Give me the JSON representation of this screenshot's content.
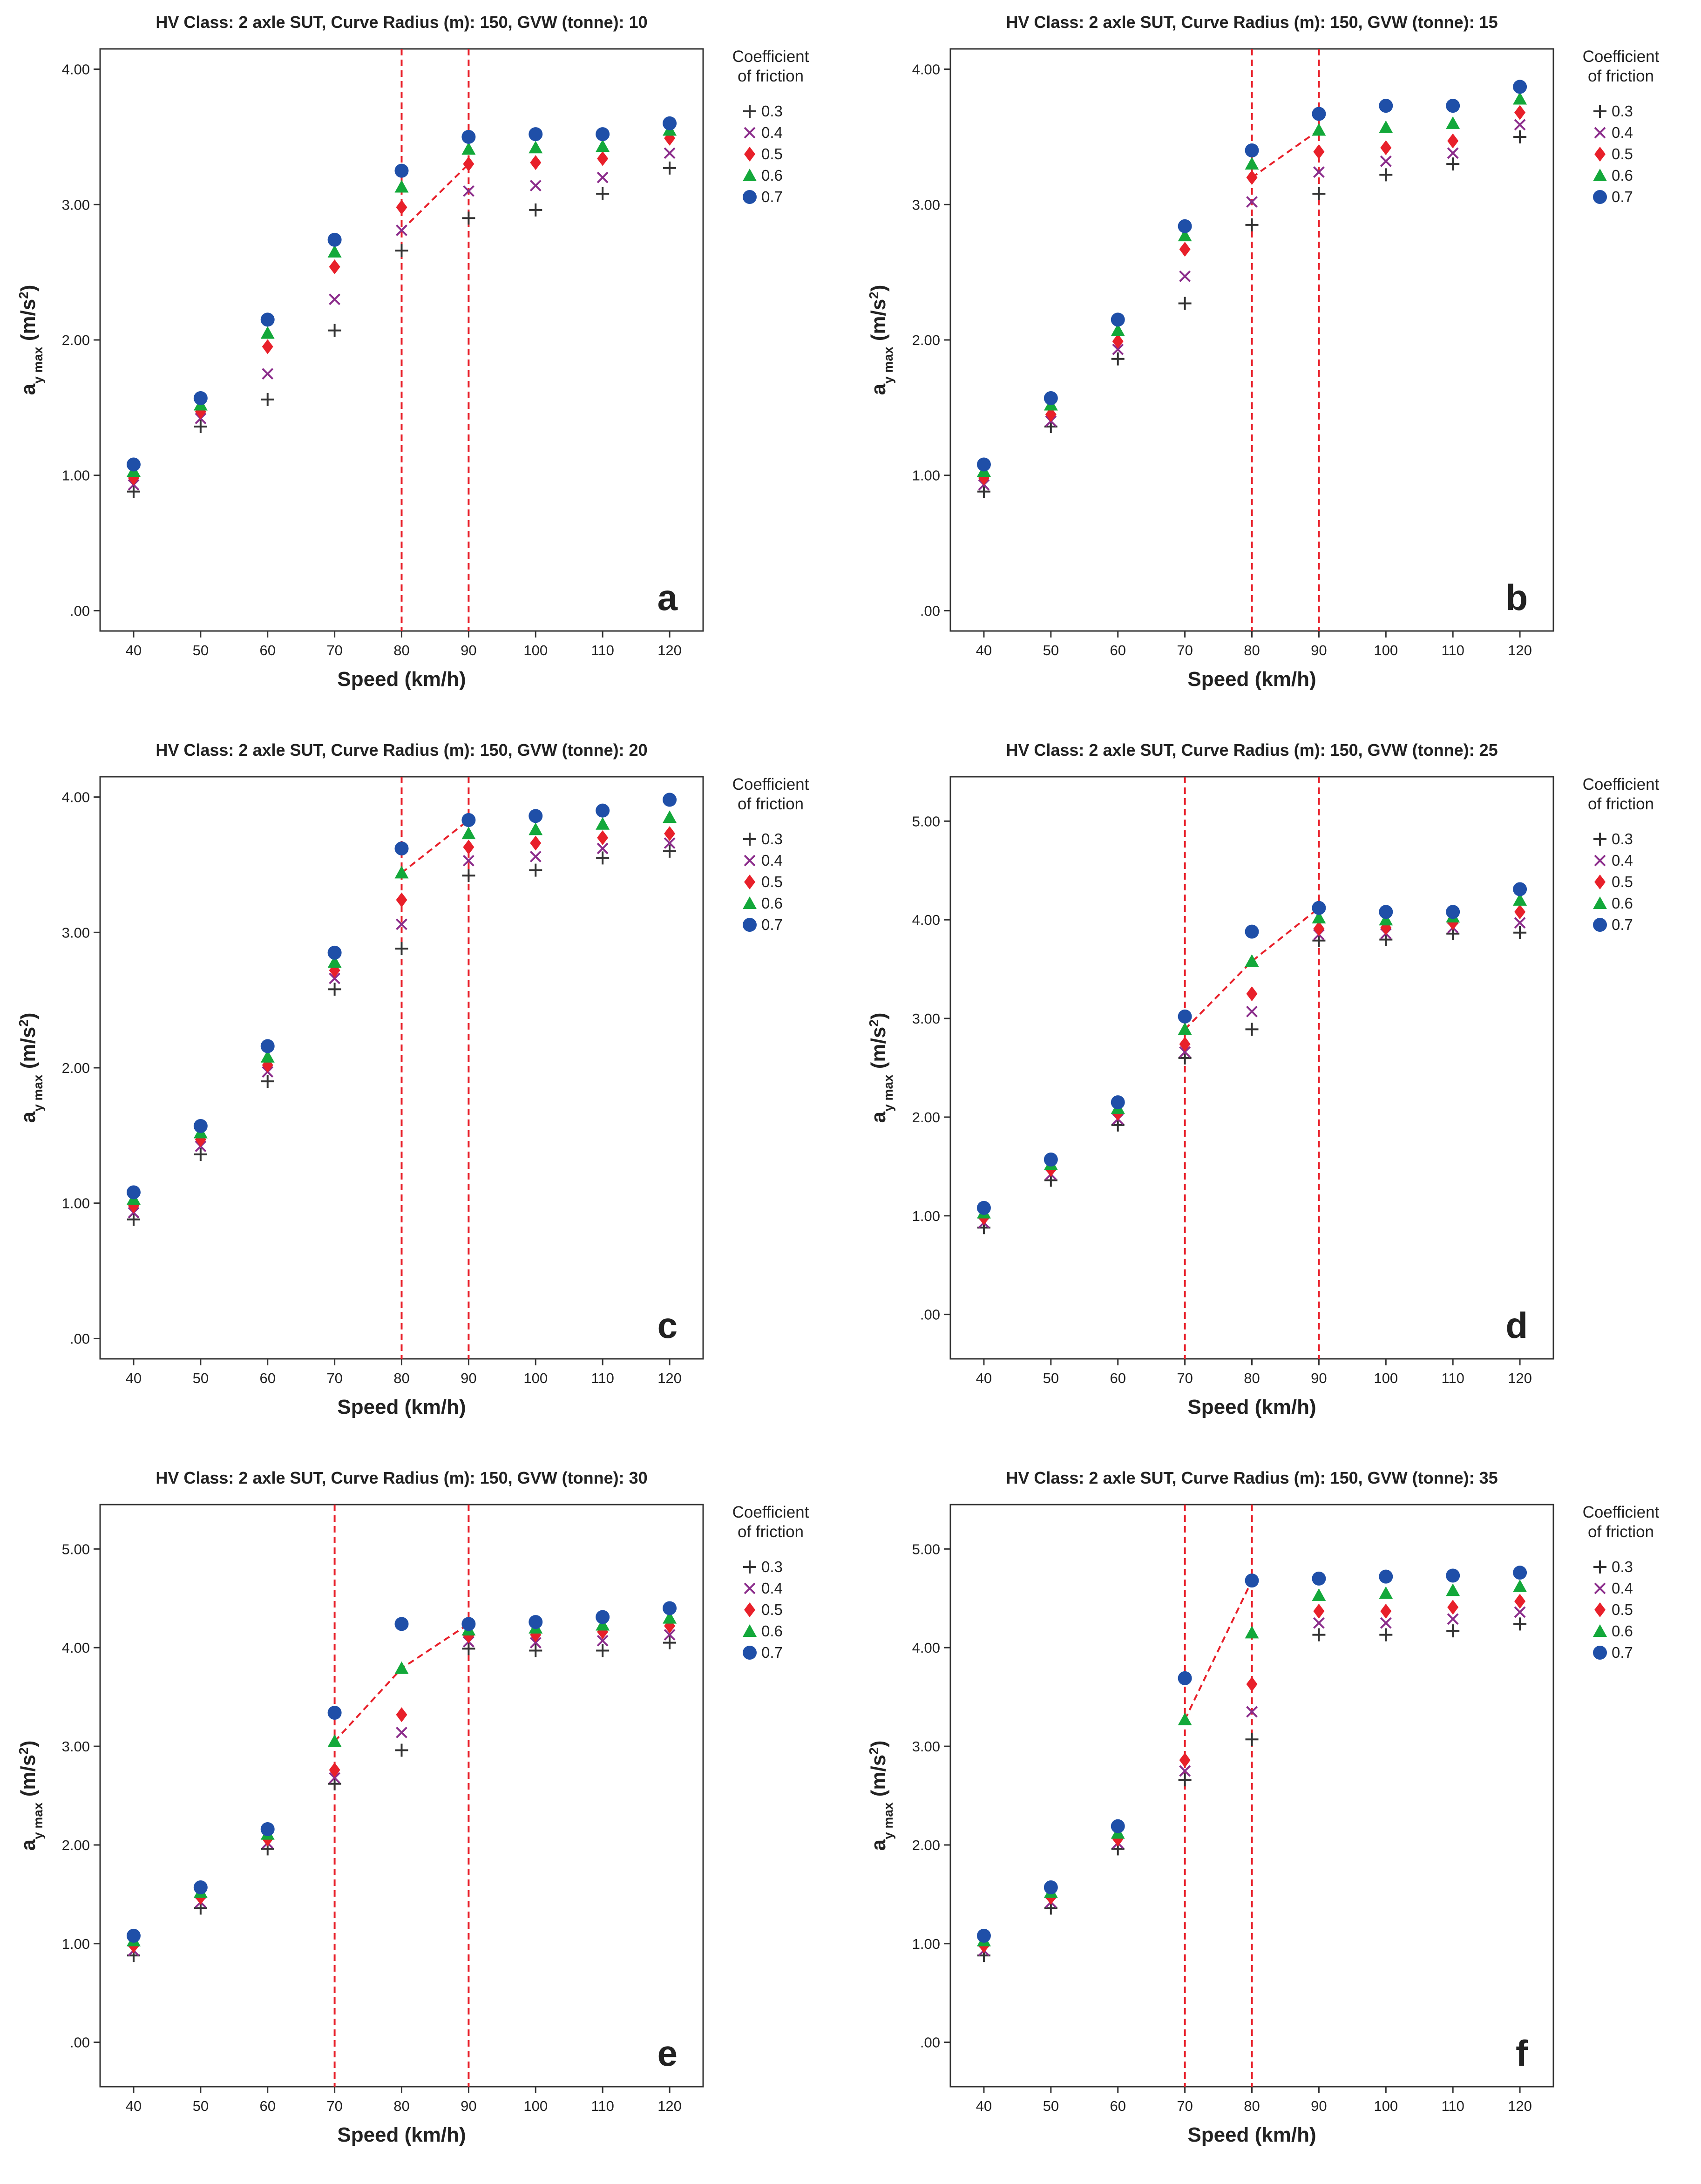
{
  "colors": {
    "s03": "#333333",
    "s04": "#8b2c8b",
    "s05": "#e8202a",
    "s06": "#13a83a",
    "s07": "#1f4fa8",
    "guide": "#e8202a",
    "axis": "#333333"
  },
  "shared": {
    "legend_title_line1": "Coefficient",
    "legend_title_line2": "of friction",
    "xlabel": "Speed (km/h)",
    "ylabel_main": "a",
    "ylabel_sub": "y max",
    "ylabel_unit": " (m/s",
    "ylabel_sup": "2",
    "ylabel_close": ")",
    "x_categories": [
      40,
      50,
      60,
      70,
      80,
      90,
      100,
      110,
      120
    ],
    "series_names": [
      "0.3",
      "0.4",
      "0.5",
      "0.6",
      "0.7"
    ],
    "series_markers": [
      "plus-marker",
      "cross-marker",
      "diamond-marker",
      "triangle-marker",
      "circle-marker"
    ]
  },
  "chart_data": [
    {
      "type": "scatter",
      "panel_label": "a",
      "title": "HV Class: 2 axle SUT, Curve Radius (m): 150, GVW (tonne): 10",
      "ylim": [
        -0.15,
        4.15
      ],
      "yticks": [
        0,
        1,
        2,
        3,
        4
      ],
      "ytick_labels": [
        ".00",
        "1.00",
        "2.00",
        "3.00",
        "4.00"
      ],
      "series": [
        {
          "name": "0.3",
          "values": [
            0.88,
            1.36,
            1.56,
            2.07,
            2.66,
            2.9,
            2.96,
            3.08,
            3.27
          ]
        },
        {
          "name": "0.4",
          "values": [
            0.93,
            1.42,
            1.75,
            2.3,
            2.81,
            3.1,
            3.14,
            3.2,
            3.38
          ]
        },
        {
          "name": "0.5",
          "values": [
            0.98,
            1.47,
            1.95,
            2.54,
            2.98,
            3.3,
            3.31,
            3.34,
            3.49
          ]
        },
        {
          "name": "0.6",
          "values": [
            1.03,
            1.52,
            2.05,
            2.65,
            3.13,
            3.41,
            3.42,
            3.43,
            3.55
          ]
        },
        {
          "name": "0.7",
          "values": [
            1.08,
            1.57,
            2.15,
            2.74,
            3.25,
            3.5,
            3.52,
            3.52,
            3.6
          ]
        }
      ],
      "guide": {
        "vertical_lines": [
          80,
          90
        ],
        "polyline": [
          [
            80,
            2.81
          ],
          [
            90,
            3.3
          ],
          [
            90,
            3.5
          ]
        ]
      }
    },
    {
      "type": "scatter",
      "panel_label": "b",
      "title": "HV Class: 2 axle SUT, Curve Radius (m): 150, GVW (tonne): 15",
      "ylim": [
        -0.15,
        4.15
      ],
      "yticks": [
        0,
        1,
        2,
        3,
        4
      ],
      "ytick_labels": [
        ".00",
        "1.00",
        "2.00",
        "3.00",
        "4.00"
      ],
      "series": [
        {
          "name": "0.3",
          "values": [
            0.88,
            1.36,
            1.86,
            2.27,
            2.85,
            3.08,
            3.22,
            3.3,
            3.5
          ]
        },
        {
          "name": "0.4",
          "values": [
            0.93,
            1.4,
            1.93,
            2.47,
            3.02,
            3.24,
            3.32,
            3.38,
            3.59
          ]
        },
        {
          "name": "0.5",
          "values": [
            0.98,
            1.45,
            1.99,
            2.67,
            3.2,
            3.39,
            3.42,
            3.47,
            3.68
          ]
        },
        {
          "name": "0.6",
          "values": [
            1.03,
            1.52,
            2.07,
            2.77,
            3.3,
            3.55,
            3.57,
            3.6,
            3.78
          ]
        },
        {
          "name": "0.7",
          "values": [
            1.08,
            1.57,
            2.15,
            2.84,
            3.4,
            3.67,
            3.73,
            3.73,
            3.87
          ]
        }
      ],
      "guide": {
        "vertical_lines": [
          80,
          90
        ],
        "polyline": [
          [
            80,
            3.2
          ],
          [
            90,
            3.55
          ],
          [
            90,
            3.67
          ]
        ]
      }
    },
    {
      "type": "scatter",
      "panel_label": "c",
      "title": "HV Class: 2 axle SUT, Curve Radius (m): 150, GVW (tonne): 20",
      "ylim": [
        -0.15,
        4.15
      ],
      "yticks": [
        0,
        1,
        2,
        3,
        4
      ],
      "ytick_labels": [
        ".00",
        "1.00",
        "2.00",
        "3.00",
        "4.00"
      ],
      "series": [
        {
          "name": "0.3",
          "values": [
            0.88,
            1.36,
            1.9,
            2.58,
            2.88,
            3.42,
            3.46,
            3.55,
            3.6
          ]
        },
        {
          "name": "0.4",
          "values": [
            0.93,
            1.42,
            1.97,
            2.66,
            3.06,
            3.53,
            3.56,
            3.62,
            3.66
          ]
        },
        {
          "name": "0.5",
          "values": [
            0.98,
            1.47,
            2.02,
            2.72,
            3.24,
            3.63,
            3.66,
            3.7,
            3.73
          ]
        },
        {
          "name": "0.6",
          "values": [
            1.03,
            1.52,
            2.08,
            2.78,
            3.44,
            3.73,
            3.76,
            3.8,
            3.85
          ]
        },
        {
          "name": "0.7",
          "values": [
            1.08,
            1.57,
            2.16,
            2.85,
            3.62,
            3.83,
            3.86,
            3.9,
            3.98
          ]
        }
      ],
      "guide": {
        "vertical_lines": [
          80,
          90
        ],
        "polyline": [
          [
            80,
            3.44
          ],
          [
            90,
            3.83
          ]
        ]
      }
    },
    {
      "type": "scatter",
      "panel_label": "d",
      "title": "HV Class: 2 axle SUT, Curve Radius (m): 150, GVW (tonne): 25",
      "ylim": [
        -0.45,
        5.45
      ],
      "yticks": [
        0,
        1,
        2,
        3,
        4,
        5
      ],
      "ytick_labels": [
        ".00",
        "1.00",
        "2.00",
        "3.00",
        "4.00",
        "5.00"
      ],
      "series": [
        {
          "name": "0.3",
          "values": [
            0.88,
            1.36,
            1.92,
            2.6,
            2.89,
            3.79,
            3.8,
            3.86,
            3.87
          ]
        },
        {
          "name": "0.4",
          "values": [
            0.93,
            1.42,
            1.98,
            2.66,
            3.07,
            3.85,
            3.86,
            3.92,
            3.97
          ]
        },
        {
          "name": "0.5",
          "values": [
            0.98,
            1.47,
            2.04,
            2.74,
            3.25,
            3.91,
            3.92,
            3.97,
            4.08
          ]
        },
        {
          "name": "0.6",
          "values": [
            1.03,
            1.52,
            2.09,
            2.89,
            3.58,
            4.02,
            4.0,
            4.03,
            4.2
          ]
        },
        {
          "name": "0.7",
          "values": [
            1.08,
            1.57,
            2.15,
            3.02,
            3.88,
            4.12,
            4.08,
            4.08,
            4.31
          ]
        }
      ],
      "guide": {
        "vertical_lines": [
          70,
          90
        ],
        "polyline": [
          [
            70,
            2.89
          ],
          [
            80,
            3.58
          ],
          [
            90,
            4.12
          ]
        ]
      }
    },
    {
      "type": "scatter",
      "panel_label": "e",
      "title": "HV Class: 2 axle SUT, Curve Radius (m): 150, GVW (tonne): 30",
      "ylim": [
        -0.45,
        5.45
      ],
      "yticks": [
        0,
        1,
        2,
        3,
        4,
        5
      ],
      "ytick_labels": [
        ".00",
        "1.00",
        "2.00",
        "3.00",
        "4.00",
        "5.00"
      ],
      "series": [
        {
          "name": "0.3",
          "values": [
            0.88,
            1.36,
            1.96,
            2.62,
            2.96,
            3.99,
            3.97,
            3.97,
            4.05
          ]
        },
        {
          "name": "0.4",
          "values": [
            0.93,
            1.42,
            2.02,
            2.68,
            3.14,
            4.06,
            4.05,
            4.07,
            4.13
          ]
        },
        {
          "name": "0.5",
          "values": [
            0.98,
            1.47,
            2.06,
            2.76,
            3.32,
            4.12,
            4.13,
            4.16,
            4.22
          ]
        },
        {
          "name": "0.6",
          "values": [
            1.03,
            1.52,
            2.11,
            3.05,
            3.79,
            4.18,
            4.2,
            4.23,
            4.3
          ]
        },
        {
          "name": "0.7",
          "values": [
            1.08,
            1.57,
            2.16,
            3.34,
            4.24,
            4.24,
            4.26,
            4.31,
            4.4
          ]
        }
      ],
      "guide": {
        "vertical_lines": [
          70,
          90
        ],
        "polyline": [
          [
            70,
            3.05
          ],
          [
            80,
            3.79
          ],
          [
            90,
            4.24
          ]
        ]
      }
    },
    {
      "type": "scatter",
      "panel_label": "f",
      "title": "HV Class: 2 axle SUT, Curve Radius (m): 150, GVW (tonne): 35",
      "ylim": [
        -0.45,
        5.45
      ],
      "yticks": [
        0,
        1,
        2,
        3,
        4,
        5
      ],
      "ytick_labels": [
        ".00",
        "1.00",
        "2.00",
        "3.00",
        "4.00",
        "5.00"
      ],
      "series": [
        {
          "name": "0.3",
          "values": [
            0.88,
            1.36,
            1.96,
            2.66,
            3.07,
            4.13,
            4.13,
            4.17,
            4.24
          ]
        },
        {
          "name": "0.4",
          "values": [
            0.93,
            1.42,
            2.02,
            2.75,
            3.35,
            4.25,
            4.25,
            4.29,
            4.36
          ]
        },
        {
          "name": "0.5",
          "values": [
            0.98,
            1.47,
            2.06,
            2.86,
            3.63,
            4.37,
            4.37,
            4.41,
            4.47
          ]
        },
        {
          "name": "0.6",
          "values": [
            1.03,
            1.52,
            2.12,
            3.27,
            4.15,
            4.53,
            4.55,
            4.58,
            4.62
          ]
        },
        {
          "name": "0.7",
          "values": [
            1.08,
            1.57,
            2.19,
            3.69,
            4.68,
            4.7,
            4.72,
            4.73,
            4.76
          ]
        }
      ],
      "guide": {
        "vertical_lines": [
          70,
          80
        ],
        "polyline": [
          [
            70,
            3.27
          ],
          [
            80,
            4.68
          ]
        ]
      }
    }
  ]
}
